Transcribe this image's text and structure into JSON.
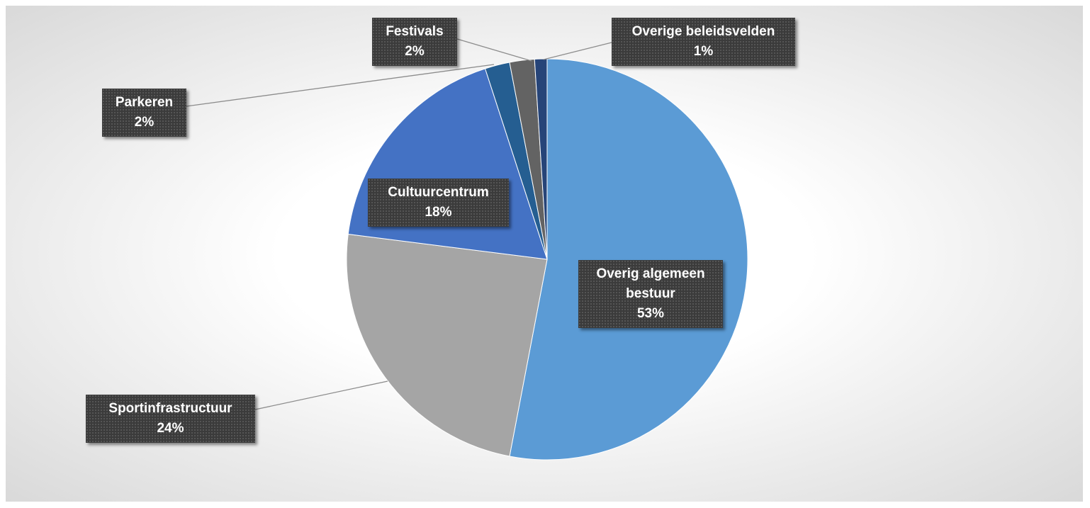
{
  "chart_data": {
    "type": "pie",
    "categories": [
      "Overig algemeen bestuur",
      "Sportinfrastructuur",
      "Cultuurcentrum",
      "Parkeren",
      "Festivals",
      "Overige beleidsvelden"
    ],
    "values": [
      53,
      24,
      18,
      2,
      2,
      1
    ],
    "value_labels": [
      "53%",
      "24%",
      "18%",
      "2%",
      "2%",
      "1%"
    ],
    "colors": [
      "#5b9bd5",
      "#a5a5a5",
      "#4472c4",
      "#255e91",
      "#636363",
      "#264478"
    ]
  }
}
